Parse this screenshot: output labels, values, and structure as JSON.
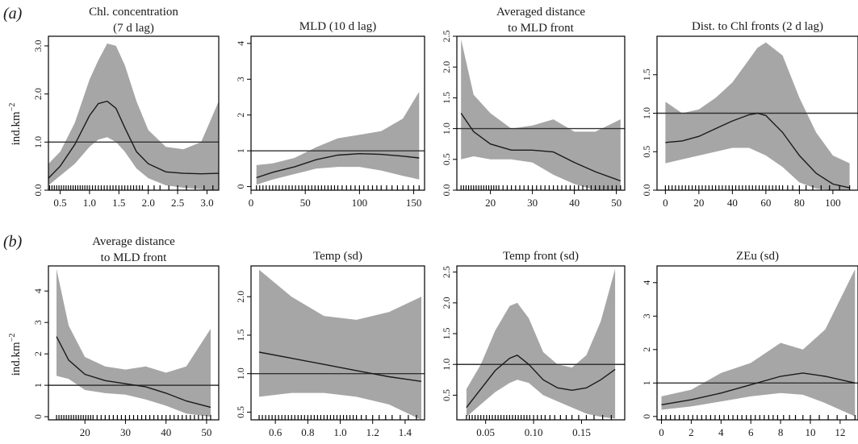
{
  "panel_labels": {
    "a": "(a)",
    "b": "(b)"
  },
  "ylabel": "ind.km",
  "ylabel_sup": "−2",
  "colors": {
    "band": "#a6a6a6",
    "line": "#1a1a1a",
    "ref": "#333333",
    "axis": "#000000"
  },
  "chart_data": [
    {
      "type": "line",
      "title": [
        "Chl. concentration",
        "(7 d lag)"
      ],
      "xlabel": "",
      "ylabel": "ind.km−2",
      "xlim": [
        0.3,
        3.2
      ],
      "ylim": [
        0,
        3.2
      ],
      "xticks": [
        0.5,
        1.0,
        1.5,
        2.0,
        2.5,
        3.0
      ],
      "xticklabels": [
        "0.5",
        "1.0",
        "1.5",
        "2.0",
        "2.5",
        "3.0"
      ],
      "yticks": [
        0,
        1,
        2,
        3
      ],
      "yticklabels": [
        "0.0",
        "1.0",
        "2.0",
        "3.0"
      ],
      "ref": 1.0,
      "x": [
        0.3,
        0.5,
        0.75,
        1.0,
        1.15,
        1.3,
        1.45,
        1.6,
        1.8,
        2.0,
        2.3,
        2.6,
        2.9,
        3.2
      ],
      "fit": [
        0.25,
        0.5,
        0.95,
        1.55,
        1.8,
        1.85,
        1.7,
        1.3,
        0.8,
        0.55,
        0.38,
        0.35,
        0.34,
        0.35
      ],
      "lower": [
        0.1,
        0.3,
        0.55,
        0.9,
        1.05,
        1.1,
        1.0,
        0.8,
        0.45,
        0.25,
        0.1,
        0.05,
        0.02,
        0.0
      ],
      "upper": [
        0.55,
        0.8,
        1.4,
        2.3,
        2.7,
        3.05,
        3.0,
        2.6,
        1.85,
        1.25,
        0.9,
        0.85,
        1.0,
        1.85
      ],
      "rug": [
        0.32,
        0.36,
        0.4,
        0.44,
        0.48,
        0.52,
        0.56,
        0.6,
        0.64,
        0.68,
        0.72,
        0.76,
        0.8,
        0.84,
        0.88,
        0.92,
        0.96,
        1.0,
        1.05,
        1.1,
        1.15,
        1.2,
        1.25,
        1.3,
        1.35,
        1.4,
        1.45,
        1.5,
        1.55,
        1.6,
        1.65,
        1.7,
        1.75,
        1.8,
        1.85,
        1.9,
        2.0,
        2.1,
        2.2,
        2.35,
        2.5,
        2.65,
        2.8,
        2.95,
        3.1
      ]
    },
    {
      "type": "line",
      "title": [
        "MLD (10 d lag)"
      ],
      "xlabel": "",
      "ylabel": "",
      "xlim": [
        0,
        160
      ],
      "ylim": [
        -0.1,
        4.2
      ],
      "xticks": [
        0,
        50,
        100,
        150
      ],
      "xticklabels": [
        "0",
        "50",
        "100",
        "150"
      ],
      "yticks": [
        0,
        1,
        2,
        3,
        4
      ],
      "yticklabels": [
        "0",
        "1",
        "2",
        "3",
        "4"
      ],
      "ref": 1.0,
      "x": [
        5,
        20,
        40,
        60,
        80,
        100,
        120,
        140,
        155
      ],
      "fit": [
        0.25,
        0.4,
        0.55,
        0.75,
        0.88,
        0.92,
        0.9,
        0.85,
        0.8
      ],
      "lower": [
        0.05,
        0.2,
        0.35,
        0.5,
        0.55,
        0.55,
        0.45,
        0.3,
        0.2
      ],
      "upper": [
        0.6,
        0.65,
        0.8,
        1.1,
        1.35,
        1.45,
        1.55,
        1.9,
        2.65
      ],
      "rug": [
        5,
        8,
        11,
        14,
        17,
        20,
        23,
        26,
        29,
        32,
        35,
        38,
        41,
        44,
        47,
        50,
        53,
        56,
        59,
        62,
        65,
        68,
        71,
        74,
        77,
        80,
        84,
        88,
        92,
        96,
        100,
        104,
        108,
        112,
        116,
        120,
        125,
        130,
        135,
        140,
        145,
        150,
        155
      ]
    },
    {
      "type": "line",
      "title": [
        "Averaged distance",
        "to MLD front"
      ],
      "xlabel": "",
      "ylabel": "",
      "xlim": [
        12,
        52
      ],
      "ylim": [
        0,
        2.5
      ],
      "xticks": [
        20,
        30,
        40,
        50
      ],
      "xticklabels": [
        "20",
        "30",
        "40",
        "50"
      ],
      "yticks": [
        0,
        0.5,
        1.0,
        1.5,
        2.0,
        2.5
      ],
      "yticklabels": [
        "0.0",
        "0.5",
        "1.0",
        "1.5",
        "2.0",
        "2.5"
      ],
      "ref": 1.0,
      "x": [
        13,
        16,
        20,
        25,
        30,
        35,
        40,
        45,
        51
      ],
      "fit": [
        1.25,
        0.95,
        0.75,
        0.65,
        0.65,
        0.62,
        0.45,
        0.3,
        0.15
      ],
      "lower": [
        0.5,
        0.55,
        0.5,
        0.5,
        0.45,
        0.25,
        0.1,
        0.0,
        0.0
      ],
      "upper": [
        2.45,
        1.55,
        1.25,
        1.0,
        1.05,
        1.15,
        0.95,
        0.95,
        1.15
      ],
      "rug": [
        13,
        13.6,
        14.2,
        14.8,
        15.4,
        16,
        16.6,
        17.2,
        17.8,
        18.4,
        19,
        19.6,
        20.2,
        20.8,
        21.4,
        22,
        23,
        24,
        25,
        26,
        27,
        28,
        29,
        30,
        31,
        32,
        33,
        34,
        35,
        36,
        37,
        38,
        39,
        40,
        41,
        42,
        43,
        44,
        45,
        46,
        47,
        48,
        49,
        50,
        51
      ]
    },
    {
      "type": "line",
      "title": [
        "Dist. to Chl fronts (2 d lag)"
      ],
      "xlabel": "",
      "ylabel": "",
      "xlim": [
        -5,
        115
      ],
      "ylim": [
        0,
        2.0
      ],
      "xticks": [
        0,
        20,
        40,
        60,
        80,
        100
      ],
      "xticklabels": [
        "0",
        "20",
        "40",
        "60",
        "80",
        "100"
      ],
      "yticks": [
        0,
        0.5,
        1.0,
        1.5
      ],
      "yticklabels": [
        "0.0",
        "0.5",
        "1.0",
        "1.5"
      ],
      "ref": 1.0,
      "x": [
        0,
        10,
        20,
        30,
        40,
        50,
        55,
        60,
        70,
        80,
        90,
        100,
        110
      ],
      "fit": [
        0.62,
        0.64,
        0.7,
        0.8,
        0.9,
        0.98,
        1.0,
        0.97,
        0.75,
        0.45,
        0.22,
        0.08,
        0.03
      ],
      "lower": [
        0.35,
        0.4,
        0.45,
        0.5,
        0.55,
        0.55,
        0.5,
        0.45,
        0.3,
        0.1,
        0.02,
        0.0,
        0.0
      ],
      "upper": [
        1.15,
        1.0,
        1.05,
        1.2,
        1.4,
        1.7,
        1.85,
        1.92,
        1.75,
        1.2,
        0.75,
        0.45,
        0.35
      ],
      "rug": [
        0,
        2,
        4,
        6,
        8,
        10,
        12,
        14,
        16,
        18,
        20,
        22,
        24,
        26,
        28,
        30,
        32,
        34,
        36,
        38,
        40,
        42,
        44,
        46,
        48,
        50,
        52,
        54,
        56,
        58,
        60,
        62,
        64,
        66,
        68,
        70,
        73,
        76,
        80,
        84,
        88,
        93,
        98,
        104,
        110
      ]
    },
    {
      "type": "line",
      "title": [
        "Average distance",
        "to MLD front"
      ],
      "xlabel": "",
      "ylabel": "ind.km−2",
      "xlim": [
        11,
        53
      ],
      "ylim": [
        -0.1,
        4.8
      ],
      "xticks": [
        20,
        30,
        40,
        50
      ],
      "xticklabels": [
        "20",
        "30",
        "40",
        "50"
      ],
      "yticks": [
        0,
        1,
        2,
        3,
        4
      ],
      "yticklabels": [
        "0",
        "1",
        "2",
        "3",
        "4"
      ],
      "ref": 1.0,
      "x": [
        13,
        16,
        20,
        25,
        30,
        35,
        40,
        45,
        51
      ],
      "fit": [
        2.55,
        1.8,
        1.35,
        1.15,
        1.05,
        0.95,
        0.75,
        0.5,
        0.3
      ],
      "lower": [
        1.3,
        1.2,
        0.85,
        0.75,
        0.7,
        0.55,
        0.35,
        0.1,
        0.0
      ],
      "upper": [
        4.7,
        2.9,
        1.9,
        1.6,
        1.5,
        1.6,
        1.4,
        1.6,
        2.8
      ],
      "rug": [
        13,
        13.6,
        14.2,
        14.8,
        15.4,
        16,
        16.6,
        17.2,
        17.8,
        18.4,
        19,
        19.6,
        20.2,
        20.8,
        21.4,
        22,
        23,
        24,
        25,
        26,
        27,
        28,
        29,
        30,
        31,
        32,
        33,
        34,
        35,
        36,
        37,
        38,
        39,
        40,
        41,
        42,
        43,
        44,
        45,
        46,
        47,
        48,
        49,
        50,
        51
      ]
    },
    {
      "type": "line",
      "title": [
        "Temp (sd)"
      ],
      "xlabel": "",
      "ylabel": "",
      "xlim": [
        0.45,
        1.52
      ],
      "ylim": [
        0.4,
        2.4
      ],
      "xticks": [
        0.6,
        0.8,
        1.0,
        1.2,
        1.4
      ],
      "xticklabels": [
        "0.6",
        "0.8",
        "1.0",
        "1.2",
        "1.4"
      ],
      "yticks": [
        0.5,
        1.0,
        1.5,
        2.0
      ],
      "yticklabels": [
        "0.5",
        "1.0",
        "1.5",
        "2.0"
      ],
      "ref": 1.0,
      "x": [
        0.5,
        0.7,
        0.9,
        1.1,
        1.3,
        1.5
      ],
      "fit": [
        1.28,
        1.2,
        1.12,
        1.04,
        0.96,
        0.9
      ],
      "lower": [
        0.7,
        0.75,
        0.75,
        0.7,
        0.6,
        0.4
      ],
      "upper": [
        2.35,
        2.0,
        1.75,
        1.7,
        1.8,
        2.0
      ],
      "rug": [
        0.5,
        0.52,
        0.54,
        0.56,
        0.58,
        0.6,
        0.62,
        0.64,
        0.66,
        0.68,
        0.7,
        0.72,
        0.74,
        0.76,
        0.78,
        0.8,
        0.82,
        0.84,
        0.86,
        0.88,
        0.9,
        0.92,
        0.94,
        0.96,
        0.98,
        1.0,
        1.02,
        1.04,
        1.06,
        1.08,
        1.1,
        1.13,
        1.16,
        1.2,
        1.24,
        1.28,
        1.32,
        1.37,
        1.42,
        1.47
      ]
    },
    {
      "type": "line",
      "title": [
        "Temp front (sd)"
      ],
      "xlabel": "",
      "ylabel": "",
      "xlim": [
        0.02,
        0.195
      ],
      "ylim": [
        0.1,
        2.6
      ],
      "xticks": [
        0.05,
        0.1,
        0.15
      ],
      "xticklabels": [
        "0.05",
        "0.10",
        "0.15"
      ],
      "yticks": [
        0.5,
        1.0,
        1.5,
        2.0,
        2.5
      ],
      "yticklabels": [
        "0.5",
        "1.0",
        "1.5",
        "2.0",
        "2.5"
      ],
      "ref": 1.0,
      "x": [
        0.03,
        0.045,
        0.06,
        0.075,
        0.083,
        0.095,
        0.11,
        0.125,
        0.14,
        0.155,
        0.17,
        0.185
      ],
      "fit": [
        0.3,
        0.6,
        0.9,
        1.1,
        1.15,
        1.0,
        0.75,
        0.62,
        0.58,
        0.62,
        0.75,
        0.92
      ],
      "lower": [
        0.15,
        0.35,
        0.55,
        0.7,
        0.75,
        0.7,
        0.5,
        0.4,
        0.3,
        0.2,
        0.15,
        0.12
      ],
      "upper": [
        0.6,
        1.0,
        1.55,
        1.95,
        2.0,
        1.75,
        1.2,
        1.0,
        0.95,
        1.15,
        1.7,
        2.55
      ],
      "rug": [
        0.03,
        0.033,
        0.036,
        0.039,
        0.042,
        0.045,
        0.048,
        0.051,
        0.054,
        0.057,
        0.06,
        0.063,
        0.066,
        0.069,
        0.072,
        0.075,
        0.078,
        0.081,
        0.084,
        0.087,
        0.09,
        0.093,
        0.096,
        0.1,
        0.104,
        0.108,
        0.112,
        0.117,
        0.122,
        0.128,
        0.134,
        0.14,
        0.147,
        0.155,
        0.163,
        0.172,
        0.181
      ]
    },
    {
      "type": "line",
      "title": [
        "ZEu (sd)"
      ],
      "xlabel": "",
      "ylabel": "",
      "xlim": [
        -0.3,
        13.2
      ],
      "ylim": [
        -0.1,
        4.5
      ],
      "xticks": [
        0,
        2,
        4,
        6,
        8,
        10,
        12
      ],
      "xticklabels": [
        "0",
        "2",
        "4",
        "6",
        "8",
        "10",
        "12"
      ],
      "yticks": [
        0,
        1,
        2,
        3,
        4
      ],
      "yticklabels": [
        "0",
        "1",
        "2",
        "3",
        "4"
      ],
      "ref": 1.0,
      "x": [
        0,
        2,
        4,
        6,
        8,
        9.5,
        11,
        13
      ],
      "fit": [
        0.35,
        0.5,
        0.7,
        0.95,
        1.2,
        1.3,
        1.2,
        1.0
      ],
      "lower": [
        0.2,
        0.3,
        0.45,
        0.6,
        0.7,
        0.65,
        0.4,
        0.0
      ],
      "upper": [
        0.6,
        0.8,
        1.3,
        1.6,
        2.2,
        2.0,
        2.6,
        4.4
      ],
      "rug": [
        0,
        0.3,
        0.6,
        0.9,
        1.2,
        1.5,
        1.8,
        2.1,
        2.4,
        2.7,
        3.0,
        3.3,
        3.6,
        3.9,
        4.2,
        4.5,
        4.8,
        5.1,
        5.4,
        5.7,
        6.0,
        6.3,
        6.6,
        6.9,
        7.2,
        7.5,
        7.8,
        8.2,
        8.6,
        9.0,
        9.5,
        10.0,
        10.6,
        11.2,
        11.8,
        12.4,
        13.0
      ]
    }
  ]
}
